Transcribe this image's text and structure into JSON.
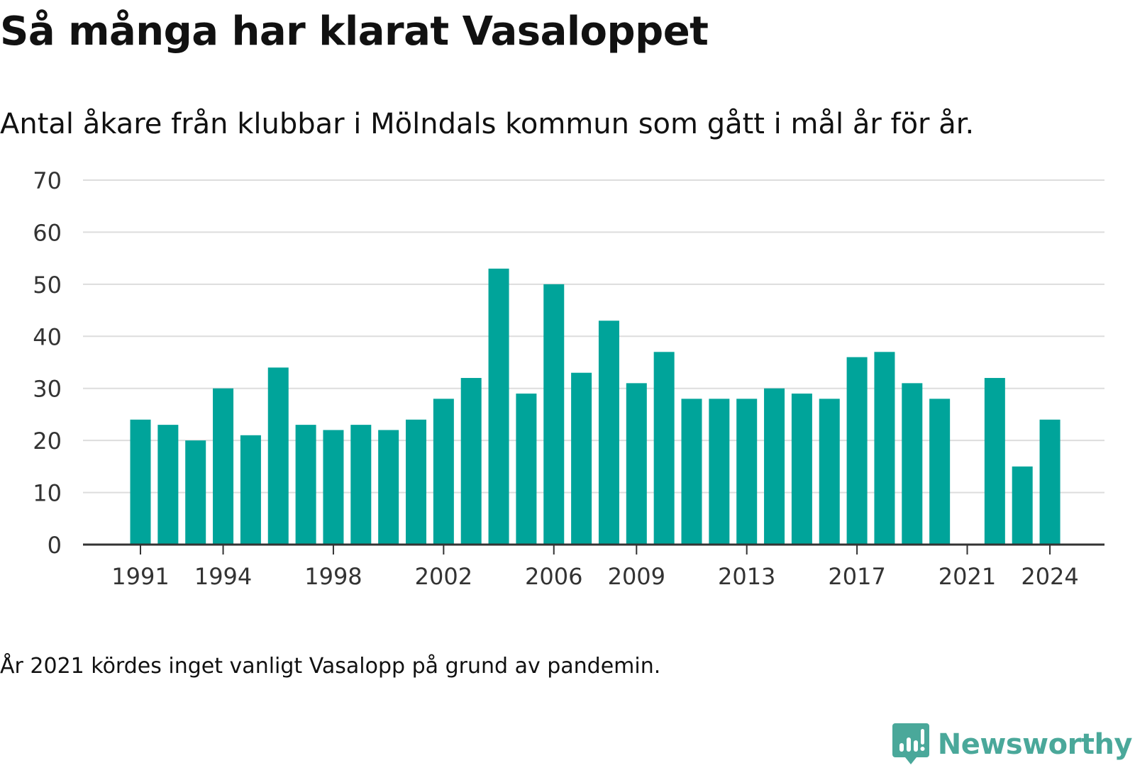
{
  "title": "Så många har klarat Vasaloppet",
  "subtitle": "Antal åkare från klubbar i Mölndals kommun som gått i mål år för år.",
  "note": "År 2021 kördes inget vanligt Vasalopp på grund av pandemin.",
  "brand": {
    "name": "Newsworthy",
    "icon": "newsworthy-logo-icon",
    "color": "#4aa89a"
  },
  "colors": {
    "bar": "#00a49a",
    "grid": "#dddddd",
    "axis": "#333333"
  },
  "chart_data": {
    "type": "bar",
    "x": [
      1991,
      1992,
      1993,
      1994,
      1995,
      1996,
      1997,
      1998,
      1999,
      2000,
      2001,
      2002,
      2003,
      2004,
      2005,
      2006,
      2007,
      2008,
      2009,
      2010,
      2011,
      2012,
      2013,
      2014,
      2015,
      2016,
      2017,
      2018,
      2019,
      2020,
      2021,
      2022,
      2023,
      2024
    ],
    "values": [
      24,
      23,
      20,
      30,
      21,
      34,
      23,
      22,
      23,
      22,
      24,
      28,
      32,
      53,
      29,
      50,
      33,
      43,
      31,
      37,
      28,
      28,
      28,
      30,
      29,
      28,
      36,
      37,
      31,
      28,
      null,
      32,
      15,
      24
    ],
    "x_ticks": [
      1991,
      1994,
      1998,
      2002,
      2006,
      2009,
      2013,
      2017,
      2021,
      2024
    ],
    "y_ticks": [
      0,
      10,
      20,
      30,
      40,
      50,
      60,
      70
    ],
    "ylim": [
      0,
      70
    ],
    "grid": true,
    "xlabel": "",
    "ylabel": ""
  }
}
